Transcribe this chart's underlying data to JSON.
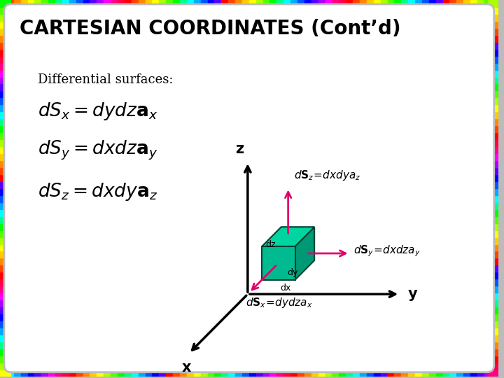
{
  "title": "CARTESIAN COORDINATES (Cont’d)",
  "bg_outer": "#aaaaaa",
  "bg_inner": "#ffffff",
  "title_fontsize": 20,
  "diff_label": "Differential surfaces:",
  "eq1": "$d\\mathit{S}_x = d\\mathit{y}d\\mathit{z}\\mathbf{a}_x$",
  "eq2": "$d\\mathit{S}_y = d\\mathit{x}d\\mathit{z}\\mathbf{a}_y$",
  "eq3": "$d\\mathit{S}_z = d\\mathit{x}d\\mathit{y}\\mathbf{a}_z$",
  "axis_color": "#000000",
  "arrow_pink": "#e0006a",
  "cube_top": "#00b890",
  "cube_front": "#00c898",
  "cube_right": "#009970",
  "ann_sz_label": "d$\\mathbf{S}_z$=dxdya$_z$",
  "ann_sy_label": "d$\\mathbf{S}_y$=dxdza$_y$",
  "ann_sx_label": "d$\\mathbf{S}_x$=dydza$_x$",
  "border_colors": [
    "#ff0000",
    "#ff4400",
    "#ff8800",
    "#ffcc00",
    "#ffff00",
    "#aaff00",
    "#55ff00",
    "#00ff00",
    "#00ff88",
    "#00ffff",
    "#00aaff",
    "#0055ff",
    "#0000ff",
    "#5500ff",
    "#aa00ff",
    "#ff00ff",
    "#ff0088",
    "#ff0044",
    "#ff0000",
    "#ff4400",
    "#ff8800",
    "#ffcc00",
    "#ffff00",
    "#aaff00",
    "#55ff00",
    "#00ff00",
    "#00ff88",
    "#00ffff",
    "#00aaff",
    "#0055ff",
    "#0000ff",
    "#5500ff"
  ]
}
